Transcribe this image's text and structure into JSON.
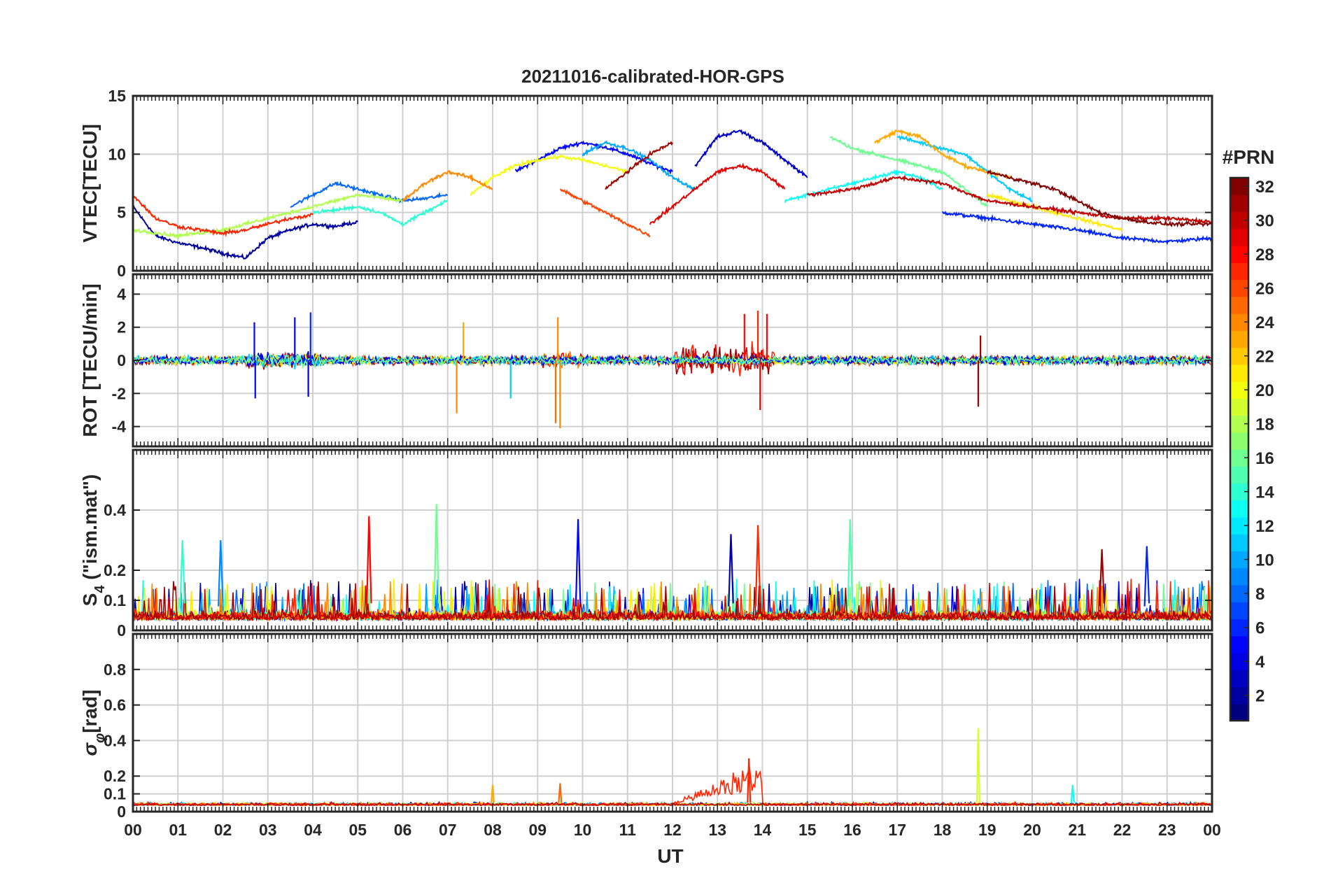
{
  "title": "20211016-calibrated-HOR-GPS",
  "colors": {
    "axis": "#262626",
    "grid": "#d0d0d0",
    "background": "#ffffff"
  },
  "colormap": "jet",
  "chart_data": [
    {
      "type": "line",
      "panel": "vtec",
      "ylabel": "VTEC[TECU]",
      "ylim": [
        0,
        15
      ],
      "yticks": [
        0,
        5,
        10,
        15
      ],
      "ytick_labels": [
        "0",
        "5",
        "10",
        "15"
      ],
      "xlim": [
        0,
        24
      ],
      "grid": true,
      "series": [
        {
          "name": "PRN 2",
          "prn": 2,
          "x": [
            0,
            0.5,
            1,
            1.5,
            2,
            2.5,
            3,
            3.5,
            4,
            4.5,
            5
          ],
          "values": [
            5.5,
            3.0,
            2.4,
            2.0,
            1.5,
            1.1,
            2.8,
            3.5,
            4.0,
            3.8,
            4.2
          ]
        },
        {
          "name": "PRN 5",
          "prn": 5,
          "x": [
            8.5,
            9,
            9.5,
            10,
            10.5,
            11,
            11.5,
            12
          ],
          "values": [
            8.5,
            9.5,
            10.5,
            11.0,
            10.6,
            10.0,
            9.2,
            8.5
          ]
        },
        {
          "name": "PRN 3",
          "prn": 3,
          "x": [
            12.5,
            13,
            13.5,
            14,
            14.5,
            15
          ],
          "values": [
            9.0,
            11.5,
            12.0,
            11.0,
            9.5,
            8.0
          ]
        },
        {
          "name": "PRN 6",
          "prn": 6,
          "x": [
            18,
            19,
            20,
            21,
            22,
            23,
            24
          ],
          "values": [
            5.0,
            4.5,
            4.0,
            3.5,
            2.8,
            2.5,
            2.8
          ]
        },
        {
          "name": "PRN 8",
          "prn": 8,
          "x": [
            3.5,
            4,
            4.5,
            5,
            5.5,
            6,
            6.5,
            7
          ],
          "values": [
            5.5,
            6.5,
            7.5,
            7.0,
            6.5,
            6.0,
            6.2,
            6.5
          ]
        },
        {
          "name": "PRN 10",
          "prn": 10,
          "x": [
            10,
            10.5,
            11,
            11.5,
            12,
            12.5
          ],
          "values": [
            10.0,
            11.0,
            10.5,
            9.5,
            8.0,
            7.0
          ]
        },
        {
          "name": "PRN 11",
          "prn": 11,
          "x": [
            17,
            17.5,
            18,
            18.5,
            19,
            19.5,
            20
          ],
          "values": [
            11.5,
            11.0,
            10.5,
            10.0,
            8.5,
            7.0,
            6.0
          ]
        },
        {
          "name": "PRN 13",
          "prn": 13,
          "x": [
            14.5,
            15,
            15.5,
            16,
            16.5,
            17,
            17.5,
            18
          ],
          "values": [
            6.0,
            6.5,
            7.0,
            7.5,
            8.0,
            8.5,
            8.0,
            7.0
          ]
        },
        {
          "name": "PRN 14",
          "prn": 14,
          "x": [
            4,
            4.5,
            5,
            5.5,
            6,
            6.5,
            7
          ],
          "values": [
            5.0,
            5.2,
            5.5,
            5.0,
            4.0,
            5.0,
            6.0
          ]
        },
        {
          "name": "PRN 16",
          "prn": 16,
          "x": [
            15.5,
            16,
            16.5,
            17,
            17.5,
            18,
            18.5,
            19
          ],
          "values": [
            11.5,
            10.5,
            10.0,
            9.5,
            9.0,
            8.5,
            7.0,
            5.5
          ]
        },
        {
          "name": "PRN 18",
          "prn": 18,
          "x": [
            0,
            1,
            2,
            3,
            4,
            5,
            6
          ],
          "values": [
            3.5,
            3.0,
            3.5,
            4.5,
            5.5,
            6.5,
            6.0
          ]
        },
        {
          "name": "PRN 20",
          "prn": 20,
          "x": [
            7.5,
            8,
            8.5,
            9,
            9.5,
            10,
            10.5,
            11
          ],
          "values": [
            6.5,
            8.0,
            9.0,
            9.5,
            9.8,
            9.5,
            9.0,
            8.5
          ]
        },
        {
          "name": "PRN 21",
          "prn": 21,
          "x": [
            19,
            19.5,
            20,
            20.5,
            21,
            21.5,
            22
          ],
          "values": [
            6.5,
            6.0,
            5.5,
            5.0,
            4.5,
            4.0,
            3.5
          ]
        },
        {
          "name": "PRN 23",
          "prn": 23,
          "x": [
            16.5,
            17,
            17.5,
            18,
            18.5,
            19,
            19.5
          ],
          "values": [
            11.0,
            12.0,
            11.5,
            10.0,
            9.0,
            8.5,
            8.0
          ]
        },
        {
          "name": "PRN 24",
          "prn": 24,
          "x": [
            6,
            6.5,
            7,
            7.5,
            8
          ],
          "values": [
            6.0,
            7.5,
            8.5,
            8.0,
            7.0
          ]
        },
        {
          "name": "PRN 26",
          "prn": 26,
          "x": [
            9.5,
            10,
            10.5,
            11,
            11.5
          ],
          "values": [
            7.0,
            6.0,
            5.0,
            4.0,
            3.0
          ]
        },
        {
          "name": "PRN 27",
          "prn": 27,
          "x": [
            0,
            0.5,
            1,
            1.5,
            2,
            2.5,
            3,
            3.5,
            4
          ],
          "values": [
            6.5,
            4.5,
            3.8,
            3.5,
            3.2,
            3.5,
            4.0,
            4.5,
            4.8
          ]
        },
        {
          "name": "PRN 29",
          "prn": 29,
          "x": [
            11.5,
            12,
            12.5,
            13,
            13.5,
            14,
            14.5
          ],
          "values": [
            4.0,
            5.5,
            7.0,
            8.5,
            9.0,
            8.5,
            7.0
          ]
        },
        {
          "name": "PRN 30",
          "prn": 30,
          "x": [
            15,
            16,
            17,
            18,
            19,
            20,
            21,
            22,
            23,
            24
          ],
          "values": [
            6.5,
            7.0,
            8.0,
            7.5,
            6.0,
            5.5,
            5.0,
            4.5,
            4.5,
            4.2
          ]
        },
        {
          "name": "PRN 31",
          "prn": 31,
          "x": [
            10.5,
            11,
            11.5,
            12
          ],
          "values": [
            7.0,
            8.5,
            10.0,
            11.0
          ]
        },
        {
          "name": "PRN 32",
          "prn": 32,
          "x": [
            19,
            19.5,
            20,
            20.5,
            21,
            21.5,
            22,
            22.5,
            23,
            24
          ],
          "values": [
            8.5,
            8.0,
            7.5,
            7.0,
            6.0,
            5.0,
            4.5,
            4.2,
            4.0,
            4.0
          ]
        }
      ]
    },
    {
      "type": "line",
      "panel": "rot",
      "ylabel": "ROT [TECU/min]",
      "ylim": [
        -5.2,
        5.2
      ],
      "yticks": [
        -4,
        -2,
        0,
        2,
        4
      ],
      "ytick_labels": [
        "-4",
        "-2",
        "0",
        "2",
        "4"
      ],
      "xlim": [
        0,
        24
      ],
      "grid": true,
      "note": "ROT fluctuates about 0 with typical amplitude ~0.5; spikes listed below",
      "spikes": [
        {
          "prn": 5,
          "x": 2.7,
          "value": 2.3
        },
        {
          "prn": 5,
          "x": 2.72,
          "value": -2.3
        },
        {
          "prn": 4,
          "x": 3.6,
          "value": 2.6
        },
        {
          "prn": 4,
          "x": 3.9,
          "value": -2.2
        },
        {
          "prn": 6,
          "x": 3.95,
          "value": 2.9
        },
        {
          "prn": 24,
          "x": 7.2,
          "value": -3.2
        },
        {
          "prn": 23,
          "x": 7.35,
          "value": 2.3
        },
        {
          "prn": 11,
          "x": 8.4,
          "value": -2.3
        },
        {
          "prn": 25,
          "x": 9.4,
          "value": -3.8
        },
        {
          "prn": 24,
          "x": 9.5,
          "value": -4.1
        },
        {
          "prn": 24,
          "x": 9.45,
          "value": 2.6
        },
        {
          "prn": 28,
          "x": 13.6,
          "value": 2.8
        },
        {
          "prn": 27,
          "x": 13.9,
          "value": 3.0
        },
        {
          "prn": 28,
          "x": 14.1,
          "value": 2.8
        },
        {
          "prn": 29,
          "x": 13.95,
          "value": -3.0
        },
        {
          "prn": 31,
          "x": 18.8,
          "value": -2.8
        },
        {
          "prn": 31,
          "x": 18.85,
          "value": 1.5
        }
      ]
    },
    {
      "type": "line",
      "panel": "s4",
      "ylabel": "S_4 (\"ism.mat\")",
      "ylabel_main": "S",
      "ylabel_sub": "4",
      "ylabel_tail": " (\"ism.mat\")",
      "ylim": [
        0,
        0.6
      ],
      "yticks": [
        0,
        0.1,
        0.2,
        0.4
      ],
      "ytick_labels": [
        "0",
        "0.1",
        "0.2",
        "0.4"
      ],
      "xlim": [
        0,
        24
      ],
      "grid": true,
      "note": "S4 background ~0.02-0.08; peaks listed below",
      "peaks": [
        {
          "prn": 14,
          "x": 1.1,
          "value": 0.3
        },
        {
          "prn": 9,
          "x": 1.95,
          "value": 0.3
        },
        {
          "prn": 28,
          "x": 5.25,
          "value": 0.38
        },
        {
          "prn": 16,
          "x": 6.75,
          "value": 0.42
        },
        {
          "prn": 5,
          "x": 9.9,
          "value": 0.37
        },
        {
          "prn": 3,
          "x": 13.3,
          "value": 0.32
        },
        {
          "prn": 27,
          "x": 13.9,
          "value": 0.35
        },
        {
          "prn": 15,
          "x": 15.95,
          "value": 0.37
        },
        {
          "prn": 6,
          "x": 22.55,
          "value": 0.28
        },
        {
          "prn": 31,
          "x": 21.55,
          "value": 0.27
        }
      ]
    },
    {
      "type": "line",
      "panel": "sigma_phi",
      "ylabel": "σ_φ [rad]",
      "ylabel_main": "σ",
      "ylabel_sub": "φ",
      "ylabel_tail": "[rad]",
      "ylim": [
        0,
        1
      ],
      "yticks": [
        0,
        0.1,
        0.2,
        0.4,
        0.6,
        0.8
      ],
      "ytick_labels": [
        "0",
        "0.1",
        "0.2",
        "0.4",
        "0.6",
        "0.8"
      ],
      "xlim": [
        0,
        24
      ],
      "grid": true,
      "note": "sigma_phi background ~0.03; enhancement 12-14 UT by PRN 27; spike at 18.8 UT",
      "peaks": [
        {
          "prn": 27,
          "x": 13.7,
          "value": 0.3
        },
        {
          "prn": 19,
          "x": 18.8,
          "value": 0.47
        },
        {
          "prn": 13,
          "x": 20.9,
          "value": 0.15
        },
        {
          "prn": 23,
          "x": 8.0,
          "value": 0.15
        },
        {
          "prn": 25,
          "x": 9.5,
          "value": 0.16
        }
      ]
    }
  ],
  "x_axis": {
    "label": "UT",
    "tick_labels": [
      "00",
      "01",
      "02",
      "03",
      "04",
      "05",
      "06",
      "07",
      "08",
      "09",
      "10",
      "11",
      "12",
      "13",
      "14",
      "15",
      "16",
      "17",
      "18",
      "19",
      "20",
      "21",
      "22",
      "23",
      "00"
    ]
  },
  "colorbar": {
    "title": "#PRN",
    "range": [
      1,
      32
    ],
    "ticks": [
      2,
      4,
      6,
      8,
      10,
      12,
      14,
      16,
      18,
      20,
      22,
      24,
      26,
      28,
      30,
      32
    ],
    "tick_labels": [
      "2",
      "4",
      "6",
      "8",
      "10",
      "12",
      "14",
      "16",
      "18",
      "20",
      "22",
      "24",
      "26",
      "28",
      "30",
      "32"
    ]
  }
}
